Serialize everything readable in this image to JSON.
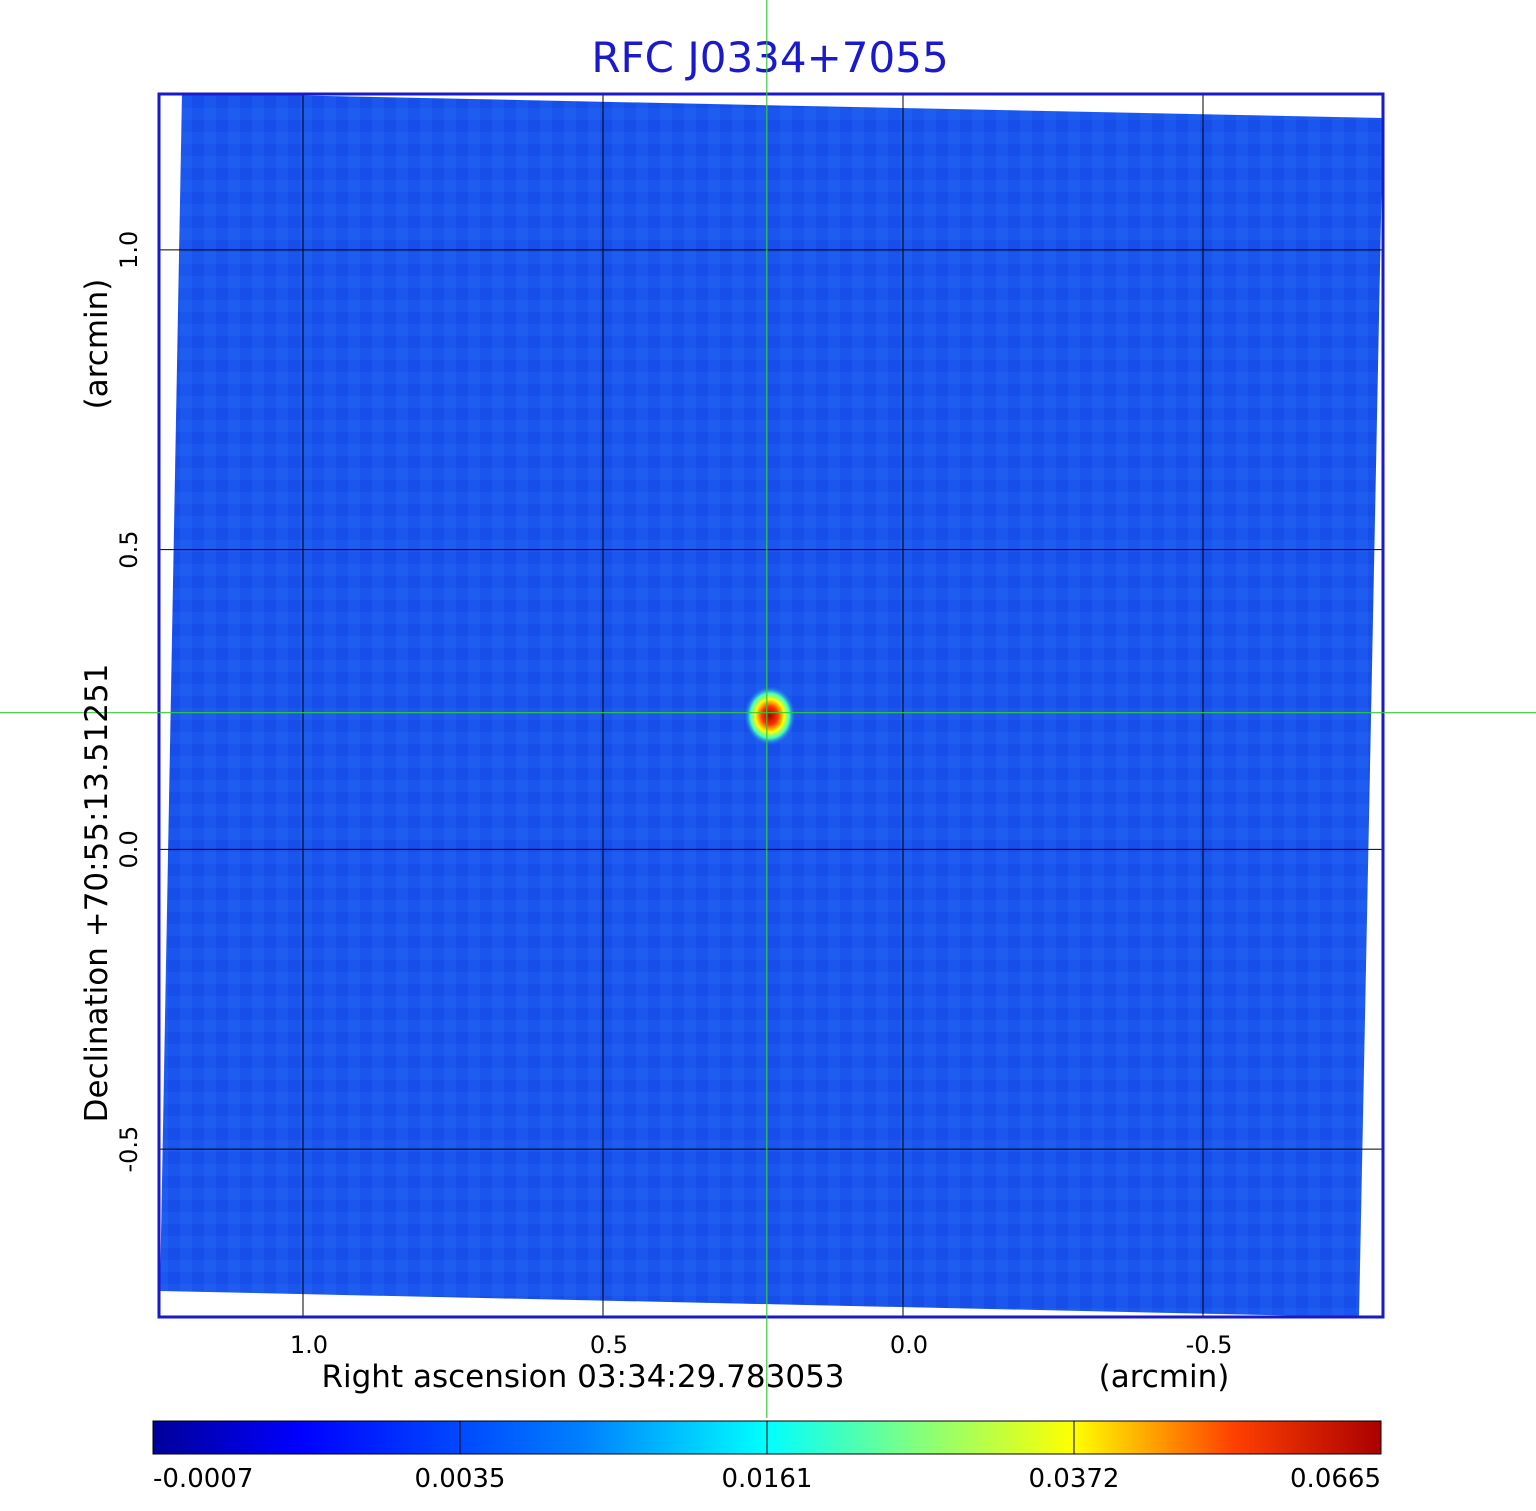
{
  "chart_data": {
    "type": "heatmap",
    "title": "RFC J0334+7055",
    "xlabel": "Right ascension  03:34:29.783053",
    "xunit": "(arcmin)",
    "ylabel": "Declination  +70:55:13.51251",
    "yunit": "(arcmin)",
    "xticks": [
      "1.0",
      "0.5",
      "0.0",
      "-0.5"
    ],
    "yticks": [
      "1.0",
      "0.5",
      "0.0",
      "-0.5"
    ],
    "xlim": [
      1.24,
      -0.8
    ],
    "ylim": [
      -0.78,
      1.26
    ],
    "grid": true,
    "crosshair": {
      "x": 0.227,
      "y": 0.228
    },
    "peak": {
      "x": 0.227,
      "y": 0.228
    },
    "colormap": "jet",
    "colorbar": {
      "ticks": [
        "-0.0007",
        "0.0035",
        "0.0161",
        "0.0372",
        "0.0665"
      ]
    },
    "colors": {
      "title": "#1a1acc",
      "frame": "#1a1acc",
      "crosshair": "#33cc33",
      "background_field": "#1a55ee"
    }
  }
}
